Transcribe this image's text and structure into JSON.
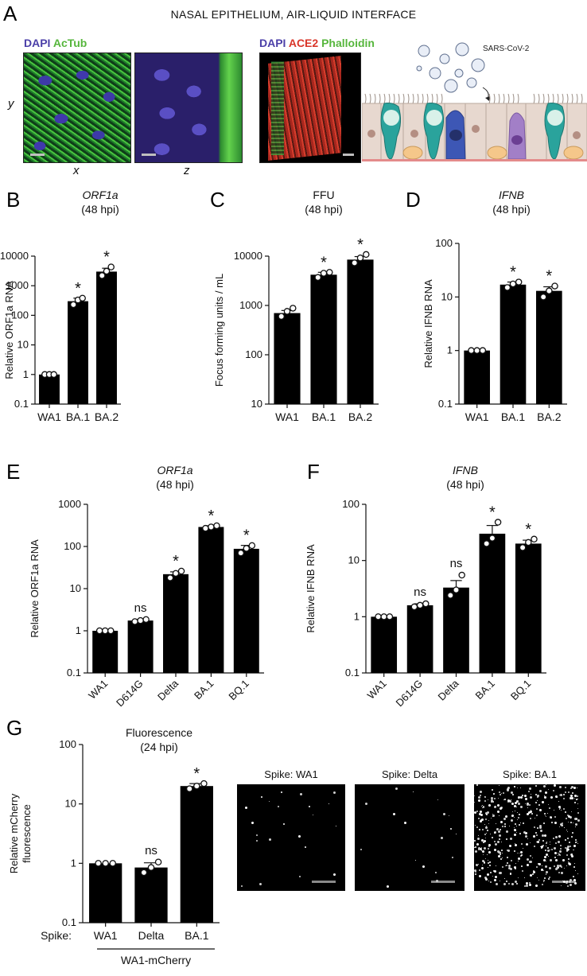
{
  "figure": {
    "title": "NASAL EPITHELIUM, AIR-LIQUID INTERFACE",
    "panel_letters": [
      "A",
      "B",
      "C",
      "D",
      "E",
      "F",
      "G"
    ],
    "panelA": {
      "stain1": {
        "dapi": "DAPI",
        "second": "AcTub"
      },
      "stain2": {
        "dapi": "DAPI",
        "ace2": "ACE2",
        "phalloidin": "Phalloidin"
      },
      "axis_y": "y",
      "axis_x": "x",
      "axis_z": "z",
      "virus_label": "SARS-CoV-2"
    },
    "panelG_images": {
      "titles": [
        "Spike: WA1",
        "Spike: Delta",
        "Spike: BA.1"
      ]
    },
    "colors": {
      "dapi": "#4b3fa8",
      "green": "#56b63c",
      "red": "#d9362a",
      "bar": "#000000"
    }
  },
  "chart_data": [
    {
      "id": "B",
      "type": "bar",
      "title": "ORF1a",
      "subtitle": "(48 hpi)",
      "title_italic": true,
      "ylabel": "Relative ORF1a RNA",
      "yscale": "log",
      "ylim": [
        0.1,
        10000
      ],
      "yticks": [
        "0.1",
        "1",
        "10",
        "100",
        "1000",
        "10000"
      ],
      "categories": [
        "WA1",
        "BA.1",
        "BA.2"
      ],
      "values": [
        1,
        300,
        3000
      ],
      "errors": [
        0,
        80,
        900
      ],
      "points": [
        [
          1,
          1,
          1
        ],
        [
          230,
          330,
          380
        ],
        [
          2200,
          3100,
          4300
        ]
      ],
      "annotations": [
        "",
        "*",
        "*"
      ],
      "rotate_labels": false
    },
    {
      "id": "C",
      "type": "bar",
      "title": "FFU",
      "subtitle": "(48 hpi)",
      "title_italic": false,
      "ylabel": "Focus forming units / mL",
      "yscale": "log",
      "ylim": [
        10,
        10000
      ],
      "yticks": [
        "10",
        "100",
        "1000",
        "10000"
      ],
      "categories": [
        "WA1",
        "BA.1",
        "BA.2"
      ],
      "values": [
        700,
        4200,
        8500
      ],
      "errors": [
        90,
        500,
        1300
      ],
      "points": [
        [
          600,
          760,
          880
        ],
        [
          3700,
          4500,
          4700
        ],
        [
          7300,
          9200,
          10800
        ]
      ],
      "annotations": [
        "",
        "*",
        "*"
      ],
      "rotate_labels": false
    },
    {
      "id": "D",
      "type": "bar",
      "title": "IFNB",
      "subtitle": "(48 hpi)",
      "title_italic": true,
      "ylabel": "Relative IFNB RNA",
      "yscale": "log",
      "ylim": [
        0.1,
        100
      ],
      "yticks": [
        "0.1",
        "1",
        "10",
        "100"
      ],
      "categories": [
        "WA1",
        "BA.1",
        "BA.2"
      ],
      "values": [
        1,
        17,
        13
      ],
      "errors": [
        0,
        2,
        2.5
      ],
      "points": [
        [
          1,
          1,
          1
        ],
        [
          15,
          17.5,
          19
        ],
        [
          10,
          13,
          16
        ]
      ],
      "annotations": [
        "",
        "*",
        "*"
      ],
      "rotate_labels": false
    },
    {
      "id": "E",
      "type": "bar",
      "title": "ORF1a",
      "subtitle": "(48 hpi)",
      "title_italic": true,
      "ylabel": "Relative ORF1a RNA",
      "yscale": "log",
      "ylim": [
        0.1,
        1000
      ],
      "yticks": [
        "0.1",
        "1",
        "10",
        "100",
        "1000"
      ],
      "categories": [
        "WA1",
        "D614G",
        "Delta",
        "BA.1",
        "BQ.1"
      ],
      "values": [
        1,
        1.75,
        22,
        290,
        88
      ],
      "errors": [
        0,
        0.1,
        3,
        20,
        18
      ],
      "points": [
        [
          1,
          1,
          1
        ],
        [
          1.65,
          1.75,
          1.85
        ],
        [
          18,
          23,
          26
        ],
        [
          270,
          290,
          310
        ],
        [
          70,
          90,
          105
        ]
      ],
      "annotations": [
        "",
        "ns",
        "*",
        "*",
        "*"
      ],
      "rotate_labels": true
    },
    {
      "id": "F",
      "type": "bar",
      "title": "IFNB",
      "subtitle": "(48 hpi)",
      "title_italic": true,
      "ylabel": "Relative IFNB RNA",
      "yscale": "log",
      "ylim": [
        0.1,
        100
      ],
      "yticks": [
        "0.1",
        "1",
        "10",
        "100"
      ],
      "categories": [
        "WA1",
        "D614G",
        "Delta",
        "BA.1",
        "BQ.1"
      ],
      "values": [
        1,
        1.6,
        3.3,
        30,
        20
      ],
      "errors": [
        0,
        0.1,
        1.1,
        12,
        3
      ],
      "points": [
        [
          1,
          1,
          1
        ],
        [
          1.5,
          1.6,
          1.7
        ],
        [
          2.4,
          3.0,
          5.5
        ],
        [
          20,
          25,
          48
        ],
        [
          17,
          21,
          24
        ]
      ],
      "annotations": [
        "",
        "ns",
        "ns",
        "*",
        "*"
      ],
      "rotate_labels": true
    },
    {
      "id": "G",
      "type": "bar",
      "title": "Fluorescence",
      "subtitle": "(24 hpi)",
      "title_italic": false,
      "ylabel": "Relative mCherry\nfluorescence",
      "yscale": "log",
      "ylim": [
        0.1,
        100
      ],
      "yticks": [
        "0.1",
        "1",
        "10",
        "100"
      ],
      "categories": [
        "WA1",
        "Delta",
        "BA.1"
      ],
      "values": [
        1,
        0.85,
        20
      ],
      "errors": [
        0,
        0.17,
        2
      ],
      "points": [
        [
          1,
          1,
          1
        ],
        [
          0.7,
          0.85,
          1.05
        ],
        [
          18,
          20,
          22
        ]
      ],
      "annotations": [
        "",
        "ns",
        "*"
      ],
      "rotate_labels": false,
      "row_label": "Spike:",
      "group_label": "WA1-mCherry"
    }
  ]
}
